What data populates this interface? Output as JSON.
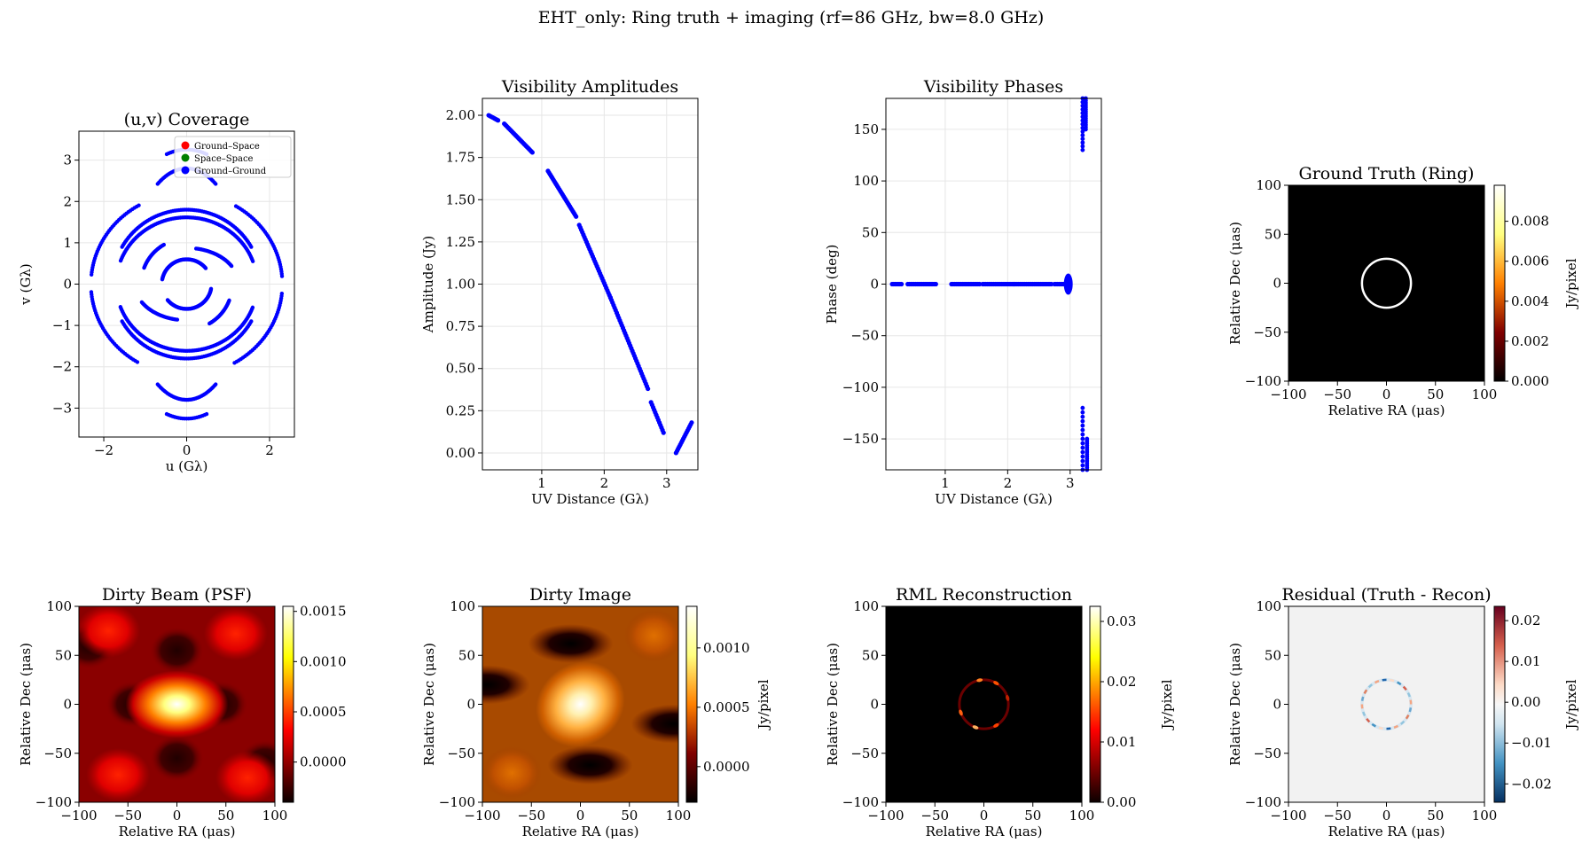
{
  "suptitle": "EHT_only: Ring truth + imaging (rf=86 GHz, bw=8.0 GHz)",
  "colors": {
    "ground_ground": "#0000ff",
    "ground_space": "#ff0000",
    "space_space": "#008000",
    "grid": "#e6e6e6",
    "residual_bg": "#f2f2f2"
  },
  "chart_data": [
    {
      "id": "uv",
      "type": "scatter",
      "title": "(u,v) Coverage",
      "xlabel": "u (Gλ)",
      "ylabel": "v (Gλ)",
      "xlim": [
        -2.6,
        2.6
      ],
      "ylim": [
        -3.7,
        3.7
      ],
      "xticks": [
        -2,
        0,
        2
      ],
      "yticks": [
        -3,
        -2,
        -1,
        0,
        1,
        2,
        3
      ],
      "grid": true,
      "legend_position": "upper right",
      "legend": [
        "Ground–Space",
        "Space–Space",
        "Ground–Ground"
      ],
      "arcs": [
        {
          "r": 1.8,
          "a0": 30,
          "a1": 150,
          "sx": 1.0,
          "sy": 1.0
        },
        {
          "r": 1.8,
          "a0": 210,
          "a1": 330,
          "sx": 1.0,
          "sy": 1.0
        },
        {
          "r": 1.7,
          "a0": 20,
          "a1": 160,
          "sx": 1.0,
          "sy": 0.95
        },
        {
          "r": 1.7,
          "a0": 200,
          "a1": 340,
          "sx": 1.0,
          "sy": 0.95
        },
        {
          "r": 2.2,
          "a0": 5,
          "a1": 60,
          "sx": 1.05,
          "sy": 1.0
        },
        {
          "r": 2.2,
          "a0": 120,
          "a1": 175,
          "sx": 1.05,
          "sy": 1.0
        },
        {
          "r": 2.2,
          "a0": 185,
          "a1": 240,
          "sx": 1.05,
          "sy": 1.0
        },
        {
          "r": 2.2,
          "a0": 300,
          "a1": 355,
          "sx": 1.05,
          "sy": 1.0
        },
        {
          "r": 3.1,
          "a0": 75,
          "a1": 105,
          "sx": 0.6,
          "sy": 1.05
        },
        {
          "r": 3.1,
          "a0": 255,
          "a1": 285,
          "sx": 0.6,
          "sy": 1.05
        },
        {
          "r": 2.8,
          "a0": 60,
          "a1": 120,
          "sx": 0.5,
          "sy": 1.0
        },
        {
          "r": 2.8,
          "a0": 240,
          "a1": 300,
          "sx": 0.5,
          "sy": 1.0
        },
        {
          "r": 0.6,
          "a0": 40,
          "a1": 170,
          "sx": 1.0,
          "sy": 1.0
        },
        {
          "r": 0.6,
          "a0": 220,
          "a1": 350,
          "sx": 1.0,
          "sy": 1.0
        },
        {
          "r": 1.25,
          "a0": 30,
          "a1": 80,
          "sx": 1.0,
          "sy": 0.7
        },
        {
          "r": 1.25,
          "a0": 210,
          "a1": 260,
          "sx": 1.0,
          "sy": 0.7
        },
        {
          "r": 1.1,
          "a0": 120,
          "a1": 160,
          "sx": 1.0,
          "sy": 1.0
        },
        {
          "r": 1.1,
          "a0": 300,
          "a1": 340,
          "sx": 1.0,
          "sy": 1.0
        }
      ]
    },
    {
      "id": "amp",
      "type": "scatter",
      "title": "Visibility Amplitudes",
      "xlabel": "UV Distance (Gλ)",
      "ylabel": "Amplitude (Jy)",
      "xlim": [
        0.05,
        3.5
      ],
      "ylim": [
        -0.1,
        2.1
      ],
      "xticks": [
        1,
        2,
        3
      ],
      "yticks": [
        0.0,
        0.25,
        0.5,
        0.75,
        1.0,
        1.25,
        1.5,
        1.75,
        2.0
      ],
      "ytick_labels": [
        "0.00",
        "0.25",
        "0.50",
        "0.75",
        "1.00",
        "1.25",
        "1.50",
        "1.75",
        "2.00"
      ],
      "grid": true,
      "segments": [
        {
          "x0": 0.15,
          "x1": 0.3,
          "y0": 2.0,
          "y1": 1.97
        },
        {
          "x0": 0.4,
          "x1": 0.85,
          "y0": 1.95,
          "y1": 1.78
        },
        {
          "x0": 1.1,
          "x1": 1.55,
          "y0": 1.67,
          "y1": 1.4
        },
        {
          "x0": 1.6,
          "x1": 2.1,
          "y0": 1.35,
          "y1": 0.92
        },
        {
          "x0": 2.1,
          "x1": 2.7,
          "y0": 0.92,
          "y1": 0.38
        },
        {
          "x0": 2.75,
          "x1": 2.95,
          "y0": 0.3,
          "y1": 0.12
        },
        {
          "x0": 3.15,
          "x1": 3.4,
          "y0": 0.0,
          "y1": 0.18
        }
      ]
    },
    {
      "id": "phase",
      "type": "scatter",
      "title": "Visibility Phases",
      "xlabel": "UV Distance (Gλ)",
      "ylabel": "Phase (deg)",
      "xlim": [
        0.05,
        3.5
      ],
      "ylim": [
        -180,
        180
      ],
      "xticks": [
        1,
        2,
        3
      ],
      "yticks": [
        -150,
        -100,
        -50,
        0,
        50,
        100,
        150
      ],
      "grid": true,
      "flat": [
        [
          0.15,
          0.3
        ],
        [
          0.4,
          0.85
        ],
        [
          1.1,
          1.55
        ],
        [
          1.6,
          2.1
        ],
        [
          2.1,
          2.7
        ],
        [
          2.75,
          2.95
        ]
      ],
      "jumps": [
        {
          "x": 3.2,
          "y0": 130,
          "y1": 180
        },
        {
          "x": 3.25,
          "y0": 150,
          "y1": 180
        },
        {
          "x": 3.2,
          "y0": -180,
          "y1": -120
        },
        {
          "x": 3.27,
          "y0": -180,
          "y1": -150
        }
      ]
    },
    {
      "id": "truth",
      "type": "heatmap",
      "title": "Ground Truth (Ring)",
      "xlabel": "Relative RA (μas)",
      "ylabel": "Relative Dec (μas)",
      "xlim": [
        -100,
        100
      ],
      "ylim": [
        -100,
        100
      ],
      "ticks": [
        -100,
        -50,
        0,
        50,
        100
      ],
      "colormap": "afmhot",
      "colorbar_label": "Jy/pixel",
      "colorbar_ticks": [
        "0.000",
        "0.002",
        "0.004",
        "0.006",
        "0.008"
      ],
      "colorbar_range": [
        0,
        0.0098
      ],
      "ring_radius_uas": 25
    },
    {
      "id": "psf",
      "type": "heatmap",
      "title": "Dirty Beam (PSF)",
      "xlabel": "Relative RA (μas)",
      "ylabel": "Relative Dec (μas)",
      "xlim": [
        -100,
        100
      ],
      "ylim": [
        -100,
        100
      ],
      "ticks": [
        -100,
        -50,
        0,
        50,
        100
      ],
      "colormap": "hot",
      "colorbar_label": "",
      "colorbar_ticks": [
        "0.0000",
        "0.0005",
        "0.0010",
        "0.0015"
      ],
      "colorbar_range": [
        -0.0004,
        0.00155
      ]
    },
    {
      "id": "dirty",
      "type": "heatmap",
      "title": "Dirty Image",
      "xlabel": "Relative RA (μas)",
      "ylabel": "Relative Dec (μas)",
      "xlim": [
        -100,
        100
      ],
      "ylim": [
        -100,
        100
      ],
      "ticks": [
        -100,
        -50,
        0,
        50,
        100
      ],
      "colormap": "afmhot",
      "colorbar_label": "Jy/pixel",
      "colorbar_ticks": [
        "0.0000",
        "0.0005",
        "0.0010"
      ],
      "colorbar_range": [
        -0.0003,
        0.00135
      ]
    },
    {
      "id": "rml",
      "type": "heatmap",
      "title": "RML Reconstruction",
      "xlabel": "Relative RA (μas)",
      "ylabel": "Relative Dec (μas)",
      "xlim": [
        -100,
        100
      ],
      "ylim": [
        -100,
        100
      ],
      "ticks": [
        -100,
        -50,
        0,
        50,
        100
      ],
      "colormap": "hot",
      "colorbar_label": "Jy/pixel",
      "colorbar_ticks": [
        "0.00",
        "0.01",
        "0.02",
        "0.03"
      ],
      "colorbar_range": [
        0,
        0.0325
      ],
      "ring_radius_uas": 25
    },
    {
      "id": "resid",
      "type": "heatmap",
      "title": "Residual (Truth - Recon)",
      "xlabel": "Relative RA (μas)",
      "ylabel": "Relative Dec (μas)",
      "xlim": [
        -100,
        100
      ],
      "ylim": [
        -100,
        100
      ],
      "ticks": [
        -100,
        -50,
        0,
        50,
        100
      ],
      "colormap": "RdBu_r",
      "colorbar_label": "Jy/pixel",
      "colorbar_ticks": [
        "−0.02",
        "−0.01",
        "0.00",
        "0.01",
        "0.02"
      ],
      "colorbar_range": [
        -0.0245,
        0.0235
      ],
      "ring_radius_uas": 25
    }
  ]
}
